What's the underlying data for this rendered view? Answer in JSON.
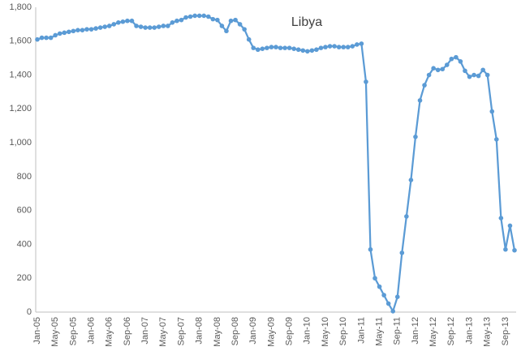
{
  "chart_data": {
    "type": "line",
    "title": "Libya",
    "categories": [
      "Jan-05",
      null,
      null,
      null,
      "May-05",
      null,
      null,
      null,
      "Sep-05",
      null,
      null,
      null,
      "Jan-06",
      null,
      null,
      null,
      "May-06",
      null,
      null,
      null,
      "Sep-06",
      null,
      null,
      null,
      "Jan-07",
      null,
      null,
      null,
      "May-07",
      null,
      null,
      null,
      "Sep-07",
      null,
      null,
      null,
      "Jan-08",
      null,
      null,
      null,
      "May-08",
      null,
      null,
      null,
      "Sep-08",
      null,
      null,
      null,
      "Jan-09",
      null,
      null,
      null,
      "May-09",
      null,
      null,
      null,
      "Sep-09",
      null,
      null,
      null,
      "Jan-10",
      null,
      null,
      null,
      "May-10",
      null,
      null,
      null,
      "Sep-10",
      null,
      null,
      null,
      "Jan-11",
      null,
      null,
      null,
      "May-11",
      null,
      null,
      null,
      "Sep-11",
      null,
      null,
      null,
      "Jan-12",
      null,
      null,
      null,
      "May-12",
      null,
      null,
      null,
      "Sep-12",
      null,
      null,
      null,
      "Jan-13",
      null,
      null,
      null,
      "May-13",
      null,
      null,
      null,
      "Sep-13",
      null,
      null
    ],
    "series": [
      {
        "name": "Libya",
        "color": "#5b9bd5",
        "values": [
          1610,
          1620,
          1620,
          1620,
          1635,
          1645,
          1650,
          1655,
          1660,
          1665,
          1665,
          1670,
          1670,
          1675,
          1680,
          1685,
          1690,
          1700,
          1710,
          1715,
          1720,
          1720,
          1690,
          1685,
          1680,
          1680,
          1680,
          1685,
          1690,
          1690,
          1710,
          1720,
          1725,
          1740,
          1745,
          1750,
          1750,
          1750,
          1745,
          1730,
          1725,
          1690,
          1660,
          1720,
          1725,
          1700,
          1670,
          1610,
          1560,
          1550,
          1555,
          1560,
          1565,
          1565,
          1560,
          1560,
          1560,
          1555,
          1550,
          1545,
          1540,
          1545,
          1550,
          1560,
          1565,
          1570,
          1570,
          1565,
          1565,
          1565,
          1570,
          1580,
          1585,
          1360,
          370,
          200,
          150,
          100,
          50,
          5,
          90,
          350,
          565,
          780,
          1035,
          1250,
          1340,
          1400,
          1440,
          1430,
          1435,
          1460,
          1495,
          1505,
          1480,
          1425,
          1390,
          1400,
          1395,
          1430,
          1400,
          1185,
          1020,
          555,
          370,
          510,
          365
        ]
      }
    ],
    "ylim": [
      0,
      1800
    ],
    "yticks": [
      0,
      200,
      400,
      600,
      800,
      {
        "value": 1000,
        "label": "1,000"
      },
      {
        "value": 1200,
        "label": "1,200"
      },
      {
        "value": 1400,
        "label": "1,400"
      },
      {
        "value": 1600,
        "label": "1,600"
      },
      {
        "value": 1800,
        "label": "1,800"
      }
    ],
    "grid": false
  }
}
